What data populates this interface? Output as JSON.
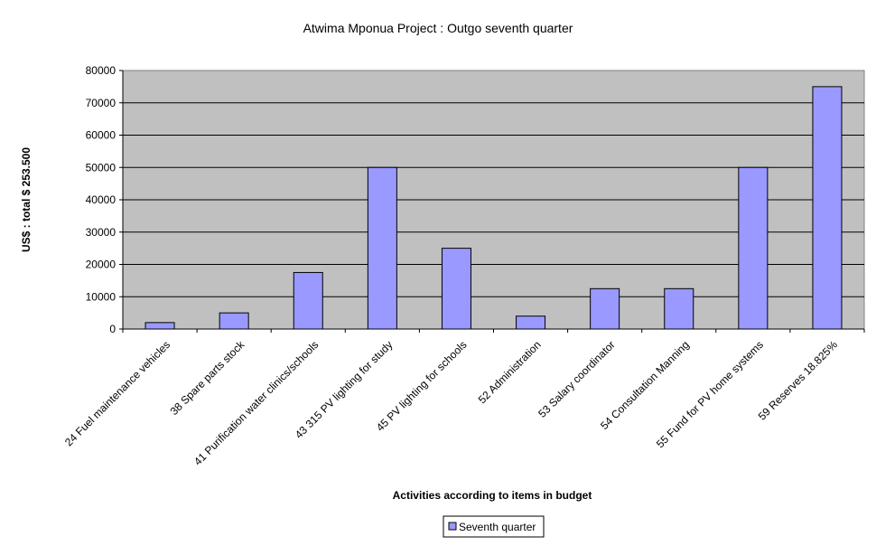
{
  "chart_data": {
    "type": "bar",
    "title": "Atwima Mponua Project : Outgo seventh quarter",
    "xlabel": "Activities according to items in budget",
    "ylabel": "US$ : total $ 253.500",
    "ylim": [
      0,
      80000
    ],
    "yticks": [
      0,
      10000,
      20000,
      30000,
      40000,
      50000,
      60000,
      70000,
      80000
    ],
    "categories": [
      "24 Fuel maintenance vehicles",
      "38 Spare parts stock",
      "41 Purification water clinics/schools",
      "43 315 PV lighting for study",
      "45 PV lighting for schools",
      "52 Administration",
      "53 Salary coordinator",
      "54 Consultation Manning",
      "55 Fund for PV home systems",
      "59 Reserves 18.825%"
    ],
    "series": [
      {
        "name": "Seventh quarter",
        "values": [
          2000,
          5000,
          17500,
          50000,
          25000,
          4000,
          12500,
          12500,
          50000,
          75000
        ]
      }
    ],
    "grid": true,
    "legend": "bottom-center",
    "colors": {
      "plot_background": "#c0c0c0",
      "bar_fill": "#9999ff",
      "bar_stroke": "#000000",
      "grid": "#000000"
    }
  }
}
